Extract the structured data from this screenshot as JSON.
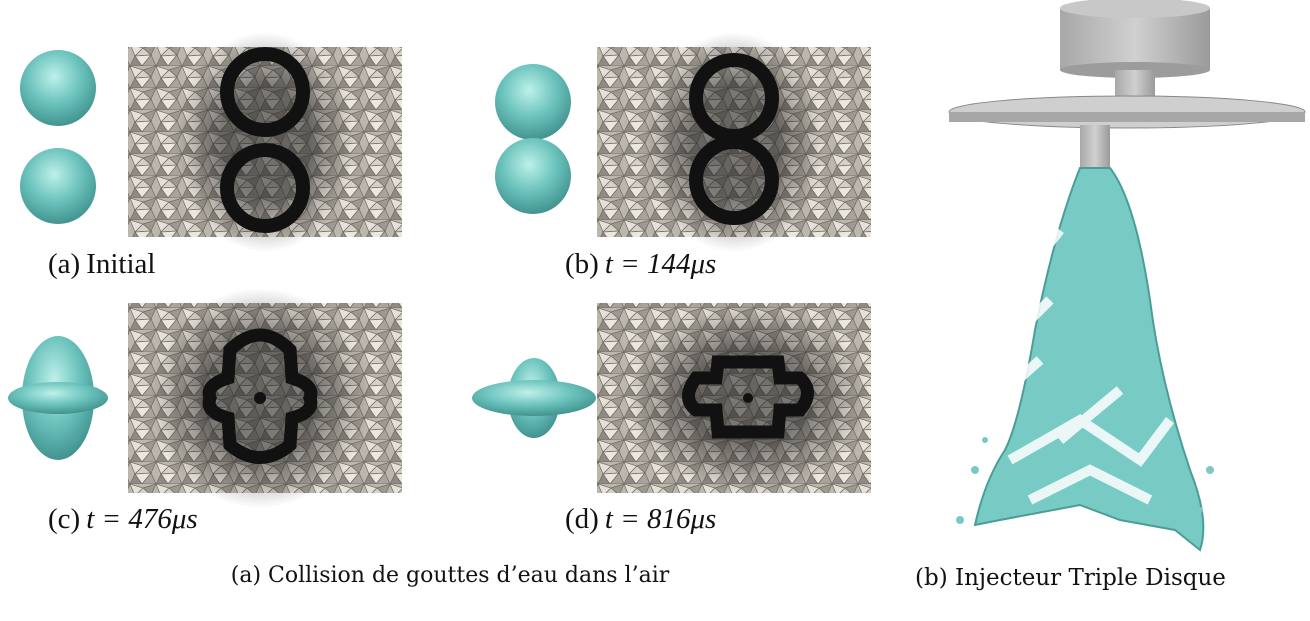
{
  "panels": [
    {
      "tag": "(a)",
      "text": "Initial"
    },
    {
      "tag": "(b)",
      "text": "t = 144μs"
    },
    {
      "tag": "(c)",
      "text": "t = 476μs"
    },
    {
      "tag": "(d)",
      "text": "t = 816μs"
    }
  ],
  "captions": {
    "left": "(a) Collision de gouttes d’eau dans l’air",
    "right": "(b) Injecteur Triple Disque"
  }
}
